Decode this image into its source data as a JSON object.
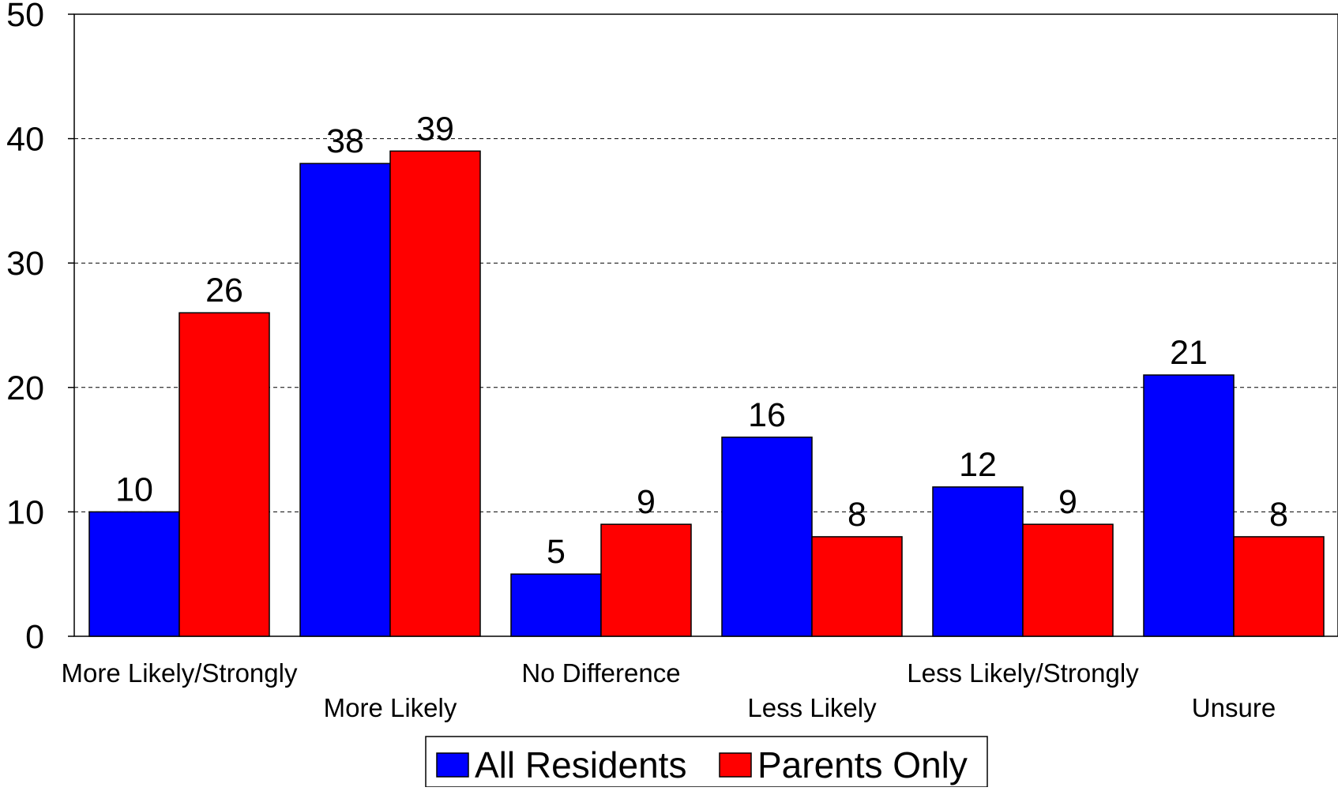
{
  "chart_data": {
    "type": "bar",
    "categories": [
      "More Likely/Strongly",
      "More Likely",
      "No Difference",
      "Less Likely",
      "Less Likely/Strongly",
      "Unsure"
    ],
    "series": [
      {
        "name": "All Residents",
        "color": "#0000ff",
        "values": [
          10,
          38,
          5,
          16,
          12,
          21
        ]
      },
      {
        "name": "Parents Only",
        "color": "#ff0000",
        "values": [
          26,
          39,
          9,
          8,
          9,
          8
        ]
      }
    ],
    "ylim": [
      0,
      50
    ],
    "yticks": [
      0,
      10,
      20,
      30,
      40,
      50
    ],
    "grid": true,
    "legend_position": "bottom-center",
    "category_label_layout": "staggered"
  }
}
